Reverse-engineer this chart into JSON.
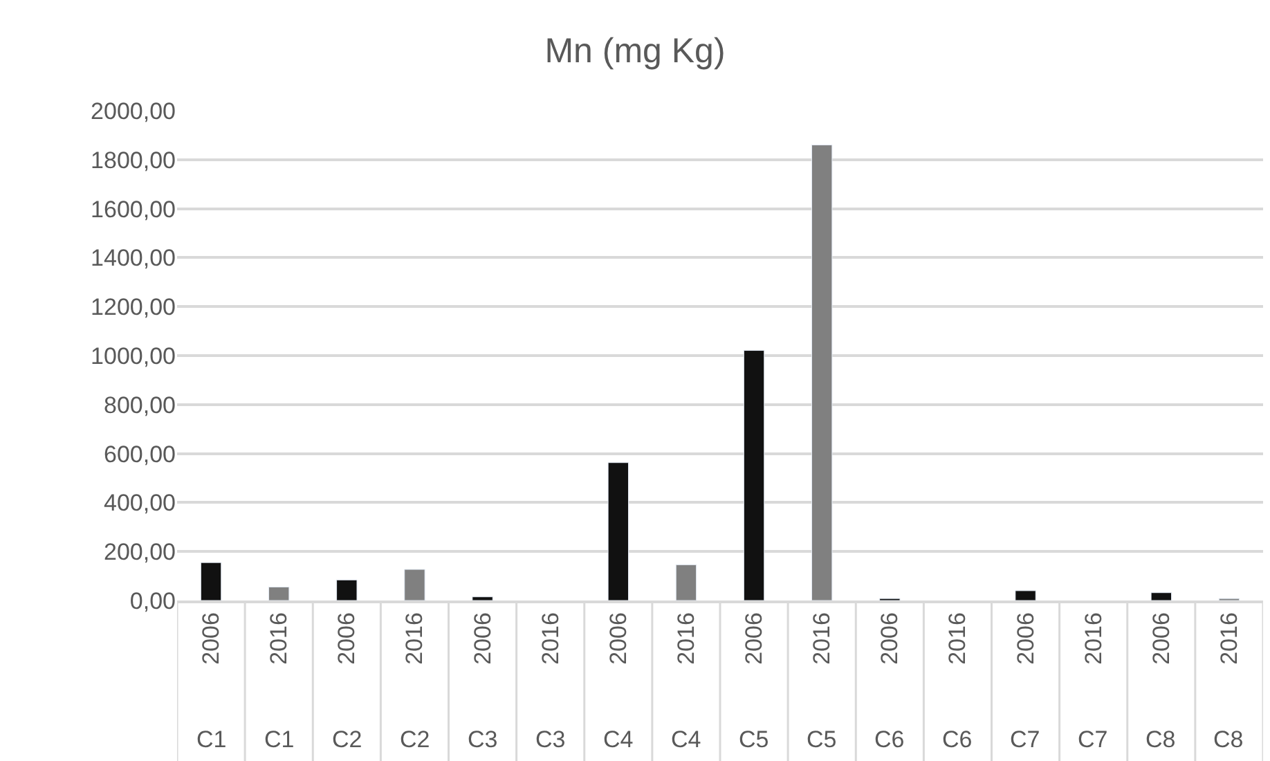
{
  "chart_data": {
    "type": "bar",
    "title": "Mn (mg Kg)",
    "categories": [
      "2006",
      "2016",
      "2006",
      "2016",
      "2006",
      "2016",
      "2006",
      "2016",
      "2006",
      "2016",
      "2006",
      "2016",
      "2006",
      "2016",
      "2006",
      "2016"
    ],
    "values": [
      155,
      55,
      84,
      127,
      15,
      null,
      563,
      146,
      1021,
      1860,
      8,
      null,
      40,
      null,
      32,
      8
    ],
    "colors": [
      "#111111",
      "#808080",
      "#111111",
      "#808080",
      "#111111",
      "#808080",
      "#111111",
      "#808080",
      "#111111",
      "#808080",
      "#111111",
      "#808080",
      "#111111",
      "#808080",
      "#111111",
      "#808080"
    ],
    "annotations": [
      "C1",
      "C1",
      "C2",
      "C2",
      "C3",
      "C3",
      "C4",
      "C4",
      "C5",
      "C5",
      "C6",
      "C6",
      "C7",
      "C7",
      "C8",
      "C8"
    ],
    "ylim": [
      0,
      2000
    ],
    "yticks": [
      {
        "value": 0,
        "label": "0,00"
      },
      {
        "value": 200,
        "label": "200,00"
      },
      {
        "value": 400,
        "label": "400,00"
      },
      {
        "value": 600,
        "label": "600,00"
      },
      {
        "value": 800,
        "label": "800,00"
      },
      {
        "value": 1000,
        "label": "1000,00"
      },
      {
        "value": 1200,
        "label": "1200,00"
      },
      {
        "value": 1400,
        "label": "1400,00"
      },
      {
        "value": 1600,
        "label": "1600,00"
      },
      {
        "value": 1800,
        "label": "1800,00"
      },
      {
        "value": 2000,
        "label": "2000,00"
      }
    ],
    "grid": "y"
  }
}
